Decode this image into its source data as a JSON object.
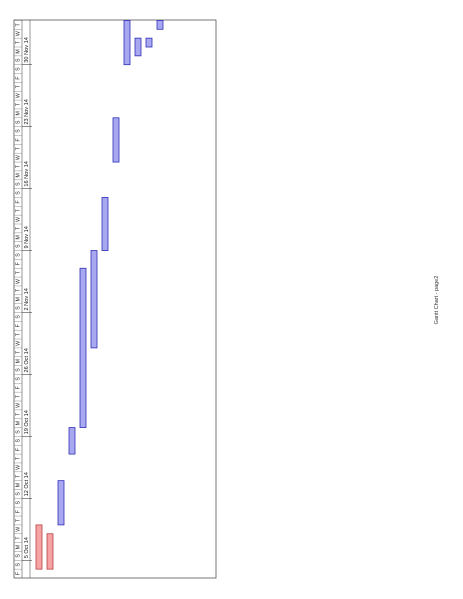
{
  "chart_data": {
    "type": "gantt",
    "title": "",
    "start_date": "2014-10-03",
    "end_date": "2014-12-05",
    "date_labels": [
      "5 Oct 14",
      "12 Oct 14",
      "19 Oct 14",
      "26 Oct 14",
      "2 Nov 14",
      "9 Nov 14",
      "16 Nov 14",
      "23 Nov 14",
      "30 Nov 14"
    ],
    "day_letters": [
      "S",
      "M",
      "T",
      "W",
      "T",
      "F",
      "S"
    ],
    "colors": {
      "normal": "#a8a8f0",
      "normal_border": "#2f2fb8",
      "critical": "#f5a3a3",
      "critical_border": "#b84040"
    },
    "tasks": [
      {
        "start": "2014-10-04",
        "end": "2014-10-09",
        "critical": true
      },
      {
        "start": "2014-10-04",
        "end": "2014-10-08",
        "critical": true
      },
      {
        "start": "2014-10-09",
        "end": "2014-10-14",
        "critical": false
      },
      {
        "start": "2014-10-17",
        "end": "2014-10-20",
        "critical": false
      },
      {
        "start": "2014-10-20",
        "end": "2014-11-07",
        "critical": false
      },
      {
        "start": "2014-10-29",
        "end": "2014-11-09",
        "critical": false
      },
      {
        "start": "2014-11-09",
        "end": "2014-11-15",
        "critical": false
      },
      {
        "start": "2014-11-19",
        "end": "2014-11-24",
        "critical": false
      },
      {
        "start": "2014-11-30",
        "end": "2014-12-05",
        "critical": false
      },
      {
        "start": "2014-12-01",
        "end": "2014-12-03",
        "critical": false
      },
      {
        "start": "2014-12-02",
        "end": "2014-12-03",
        "critical": false
      },
      {
        "start": "2014-12-04",
        "end": "2014-12-05",
        "critical": false
      }
    ]
  },
  "footer": "Gantt Chart - page2"
}
